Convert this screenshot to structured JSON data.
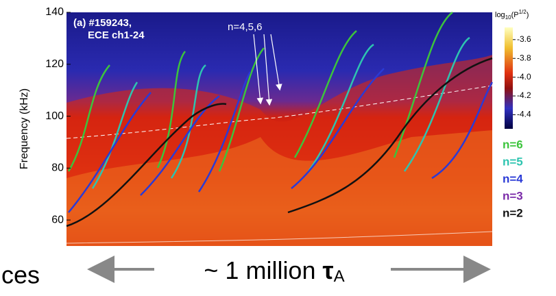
{
  "chart_data": {
    "type": "spectrogram",
    "y_label": "Frequency (kHz)",
    "ylim": [
      50,
      140
    ],
    "yticks": [
      60,
      80,
      100,
      120,
      140
    ],
    "panel_label": [
      "(a) #159243,",
      "ECE ch1-24"
    ],
    "arrow_annotation": "n=4,5,6",
    "colorbar": {
      "label": {
        "base": "log",
        "sub": "10",
        "open": "(P",
        "sup": "1/2",
        "close": ")"
      },
      "clim": [
        -4.55,
        -3.47
      ],
      "ticks": [
        -3.6,
        -3.8,
        {
          "value": -4,
          "label": "-4.0"
        },
        -4.2,
        -4.4
      ]
    },
    "legend": [
      {
        "name": "n=6",
        "color": "#3cc43c"
      },
      {
        "name": "n=5",
        "color": "#2ec4b0"
      },
      {
        "name": "n=4",
        "color": "#2a3ad6"
      },
      {
        "name": "n=3",
        "color": "#7a2aa8"
      },
      {
        "name": "n=2",
        "color": "#111111"
      }
    ],
    "left_fragment": "ces",
    "bottom_caption": {
      "text": "~ 1 million ",
      "symbol": "τ",
      "sub": "A"
    }
  }
}
